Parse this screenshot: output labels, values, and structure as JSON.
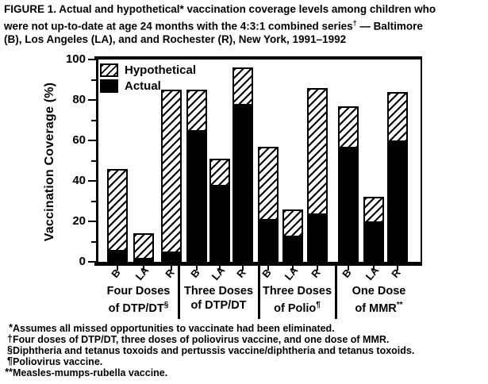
{
  "title": {
    "line1": "FIGURE 1. Actual and hypothetical* vaccination coverage levels among children who",
    "line2_pre": "were not up-to-date at age 24 months with the 4:3:1 combined series",
    "line2_sup": "†",
    "line2_post": " — Baltimore",
    "line3": "(B), Los Angeles (LA), and and Rochester (R), New York, 1991–1992"
  },
  "chart_data": {
    "type": "bar",
    "stacked": true,
    "ylabel": "Vaccination Coverage (%)",
    "ylim": [
      0,
      100
    ],
    "grid": "off",
    "legend_position": "top-left-inside",
    "y_axis": {
      "major": [
        {
          "v": 0,
          "label": "0"
        },
        {
          "v": 20,
          "label": "20"
        },
        {
          "v": 40,
          "label": "40"
        },
        {
          "v": 60,
          "label": "60"
        },
        {
          "v": 80,
          "label": "80"
        },
        {
          "v": 100,
          "label": "100"
        }
      ],
      "minor": [
        10,
        30,
        50,
        70,
        90
      ]
    },
    "legend": [
      {
        "name": "Hypothetical",
        "style": "hatched"
      },
      {
        "name": "Actual",
        "style": "solid-black"
      }
    ],
    "note": "Each bar: solid black = Actual coverage; hatched segment above = Hypothetical increment; bar top = hypothetical total",
    "groups": [
      {
        "label_line1": "Four Doses",
        "label_line2": "of DTP/DT",
        "label_sup": "§",
        "bars": [
          {
            "city": "B",
            "actual": 6,
            "total": 46
          },
          {
            "city": "LA",
            "actual": 2,
            "total": 14
          },
          {
            "city": "R",
            "actual": 5,
            "total": 85
          }
        ]
      },
      {
        "label_line1": "Three Doses",
        "label_line2": "of DTP/DT",
        "label_sup": "",
        "bars": [
          {
            "city": "B",
            "actual": 65,
            "total": 85
          },
          {
            "city": "LA",
            "actual": 38,
            "total": 51
          },
          {
            "city": "R",
            "actual": 78,
            "total": 96
          }
        ]
      },
      {
        "label_line1": "Three Doses",
        "label_line2": "of Polio",
        "label_sup": "¶",
        "bars": [
          {
            "city": "B",
            "actual": 21,
            "total": 57
          },
          {
            "city": "LA",
            "actual": 13,
            "total": 26
          },
          {
            "city": "R",
            "actual": 24,
            "total": 86
          }
        ]
      },
      {
        "label_line1": "One Dose",
        "label_line2": "of MMR",
        "label_sup": "**",
        "bars": [
          {
            "city": "B",
            "actual": 57,
            "total": 77
          },
          {
            "city": "LA",
            "actual": 20,
            "total": 32
          },
          {
            "city": "R",
            "actual": 60,
            "total": 84
          }
        ]
      }
    ],
    "colors": {
      "actual": "#000000",
      "hatch": "#000000",
      "background": "#ffffff"
    }
  },
  "footnotes": [
    {
      "marker": "*",
      "text": "Assumes all missed opportunities to vaccinate had been eliminated."
    },
    {
      "marker": "†",
      "text": "Four doses of DTP/DT, three doses of poliovirus vaccine, and one dose of MMR."
    },
    {
      "marker": "§",
      "text": "Diphtheria and tetanus toxoids and pertussis vaccine/diphtheria and tetanus toxoids."
    },
    {
      "marker": "¶",
      "text": "Poliovirus vaccine."
    },
    {
      "marker": "**",
      "text": "Measles-mumps-rubella vaccine."
    }
  ]
}
